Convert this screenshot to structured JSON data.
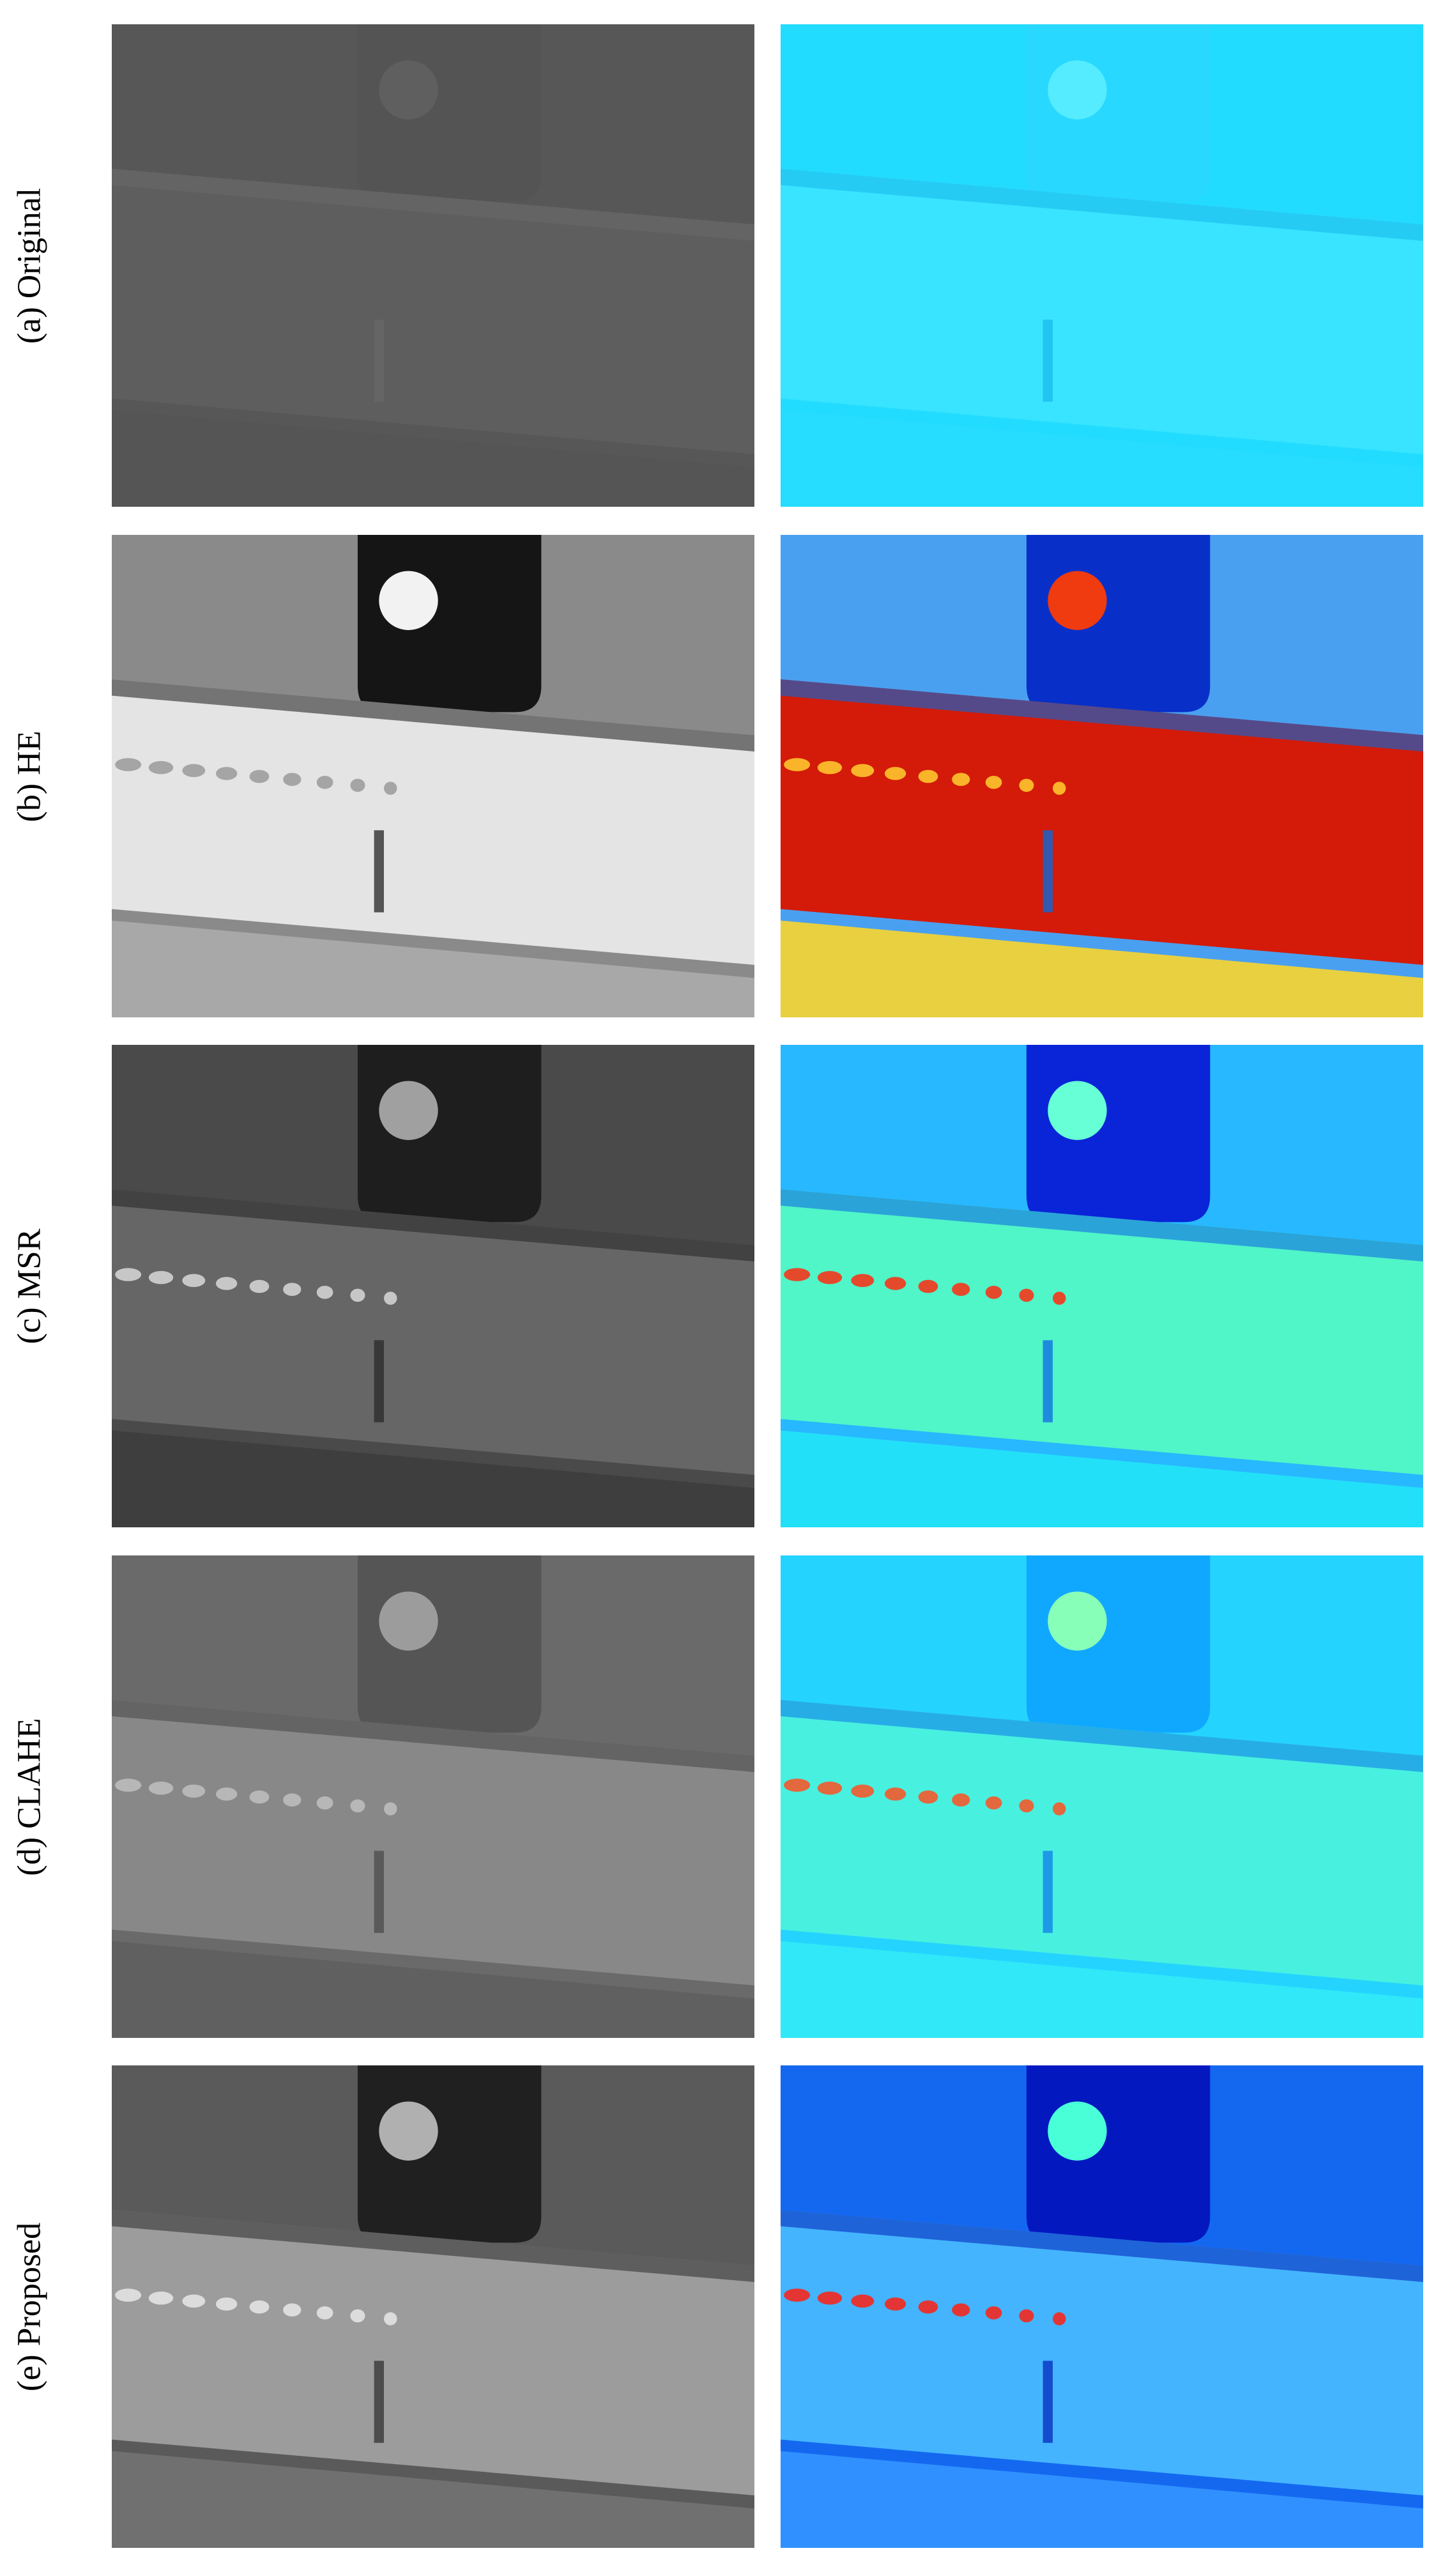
{
  "figure": {
    "rows": [
      {
        "label": "(a) Original"
      },
      {
        "label": "(b) HE"
      },
      {
        "label": "(c) MSR"
      },
      {
        "label": "(d) CLAHE"
      },
      {
        "label": "(e) Proposed"
      }
    ]
  }
}
